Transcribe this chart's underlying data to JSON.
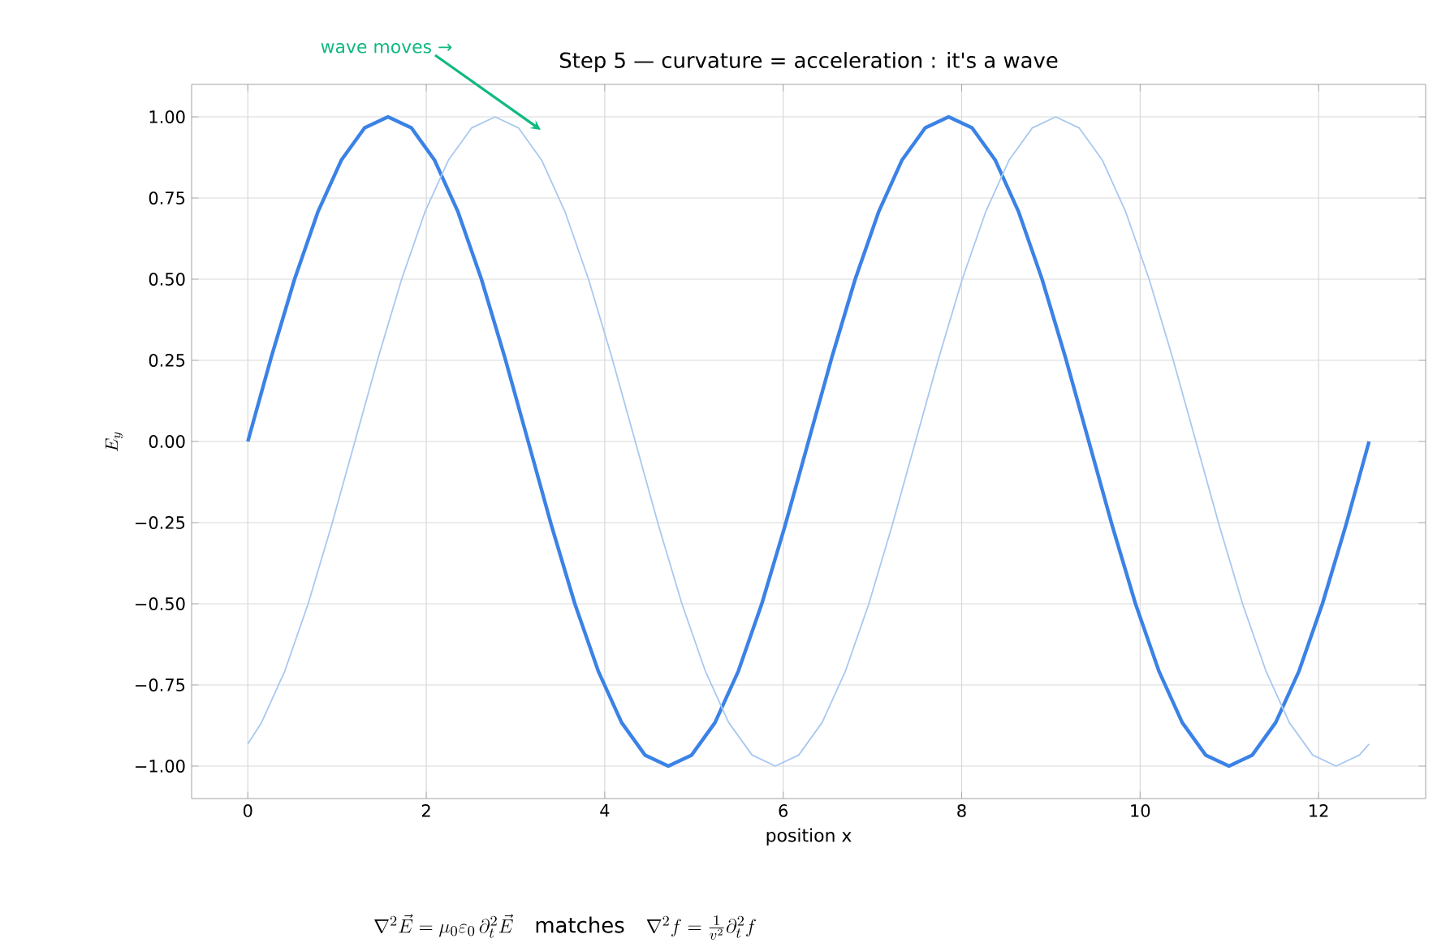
{
  "chart_data": {
    "type": "line",
    "title": "Step 5 — curvature = acceleration : it's a wave",
    "xlabel": "position x",
    "ylabel": "E_y",
    "xlim": [
      -0.63,
      13.2
    ],
    "ylim": [
      -1.1,
      1.1
    ],
    "xticks": [
      0,
      2,
      4,
      6,
      8,
      10,
      12
    ],
    "yticks": [
      {
        "value": -1,
        "label": "−1.00"
      },
      {
        "value": -0.75,
        "label": "−0.75"
      },
      {
        "value": -0.5,
        "label": "−0.50"
      },
      {
        "value": -0.25,
        "label": "−0.25"
      },
      {
        "value": 0,
        "label": "0.00"
      },
      {
        "value": 0.25,
        "label": "0.25"
      },
      {
        "value": 0.5,
        "label": "0.50"
      },
      {
        "value": 0.75,
        "label": "0.75"
      },
      {
        "value": 1,
        "label": "1.00"
      }
    ],
    "grid": true,
    "series": [
      {
        "color": "#3b82e6",
        "x": [
          0,
          0.262,
          0.524,
          0.785,
          1.047,
          1.309,
          1.571,
          1.833,
          2.094,
          2.356,
          2.618,
          2.88,
          3.142,
          3.403,
          3.665,
          3.927,
          4.189,
          4.451,
          4.712,
          4.974,
          5.236,
          5.498,
          5.76,
          6.021,
          6.283,
          6.545,
          6.807,
          7.069,
          7.33,
          7.592,
          7.854,
          8.116,
          8.378,
          8.639,
          8.901,
          9.163,
          9.425,
          9.687,
          9.948,
          10.21,
          10.472,
          10.734,
          10.996,
          11.257,
          11.519,
          11.781,
          12.043,
          12.305,
          12.566
        ],
        "values": [
          0,
          0.259,
          0.5,
          0.707,
          0.866,
          0.966,
          1,
          0.966,
          0.866,
          0.707,
          0.5,
          0.259,
          0,
          -0.259,
          -0.5,
          -0.707,
          -0.866,
          -0.966,
          -1,
          -0.966,
          -0.866,
          -0.707,
          -0.5,
          -0.259,
          0,
          0.259,
          0.5,
          0.707,
          0.866,
          0.966,
          1,
          0.966,
          0.866,
          0.707,
          0.5,
          0.259,
          0,
          -0.259,
          -0.5,
          -0.707,
          -0.866,
          -0.966,
          -1,
          -0.966,
          -0.866,
          -0.707,
          -0.5,
          -0.259,
          0
        ]
      },
      {
        "color": "#a9c8f0",
        "x": [
          0,
          0.153,
          0.415,
          0.676,
          0.938,
          1.2,
          1.462,
          1.724,
          1.985,
          2.247,
          2.509,
          2.771,
          3.033,
          3.294,
          3.556,
          3.818,
          4.08,
          4.342,
          4.603,
          4.865,
          5.127,
          5.389,
          5.651,
          5.912,
          6.174,
          6.436,
          6.698,
          6.96,
          7.221,
          7.483,
          7.745,
          8.007,
          8.269,
          8.53,
          8.792,
          9.054,
          9.316,
          9.578,
          9.839,
          10.101,
          10.363,
          10.625,
          10.887,
          11.148,
          11.41,
          11.672,
          11.934,
          12.196,
          12.457,
          12.566
        ],
        "values": [
          -0.932,
          -0.866,
          -0.707,
          -0.5,
          -0.259,
          0,
          0.259,
          0.5,
          0.707,
          0.866,
          0.966,
          1,
          0.966,
          0.866,
          0.707,
          0.5,
          0.259,
          0,
          -0.259,
          -0.5,
          -0.707,
          -0.866,
          -0.966,
          -1,
          -0.966,
          -0.866,
          -0.707,
          -0.5,
          -0.259,
          0,
          0.259,
          0.5,
          0.707,
          0.866,
          0.966,
          1,
          0.966,
          0.866,
          0.707,
          0.5,
          0.259,
          0,
          -0.259,
          -0.5,
          -0.707,
          -0.866,
          -0.966,
          -1,
          -0.966,
          -0.932
        ]
      }
    ],
    "annotations": [
      "wave moves →",
      "\\nabla^2\\vec{E}=\\mu_0\\varepsilon_0\\,\\partial_t^2\\vec{E}\\quad\\mathrm{matches}\\quad\\nabla^2 f=\\frac{1}{v^2}\\partial_t^2 f"
    ]
  }
}
